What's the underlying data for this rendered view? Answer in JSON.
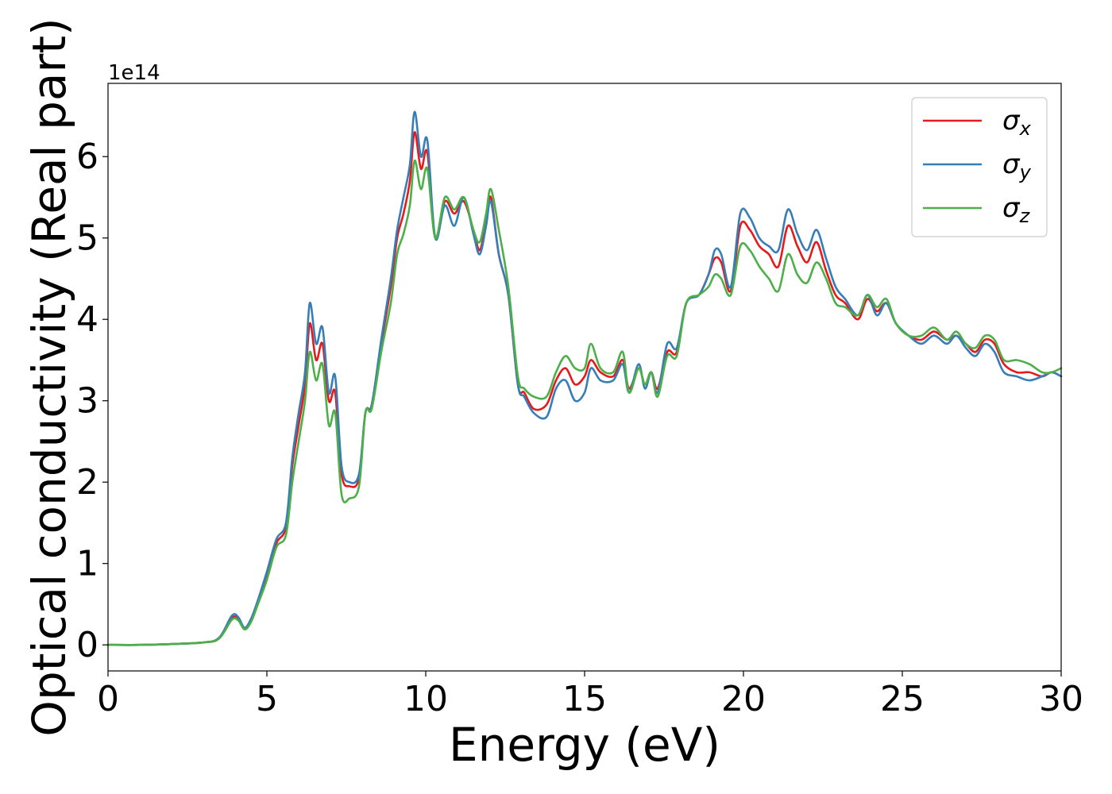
{
  "chart_data": {
    "type": "line",
    "title": "",
    "xlabel": "Energy (eV)",
    "ylabel": "Optical conductivity (Real part)",
    "y_offset_text": "1e14",
    "xlim": [
      0,
      30
    ],
    "ylim": [
      -0.32,
      6.9
    ],
    "x_ticks": [
      0,
      5,
      10,
      15,
      20,
      25,
      30
    ],
    "x_tick_labels": [
      "0",
      "5",
      "10",
      "15",
      "20",
      "25",
      "30"
    ],
    "y_ticks": [
      0,
      1,
      2,
      3,
      4,
      5,
      6
    ],
    "y_tick_labels": [
      "0",
      "1",
      "2",
      "3",
      "4",
      "5",
      "6"
    ],
    "grid": false,
    "legend_position": "top-right",
    "x": [
      0,
      1,
      2,
      3,
      3.5,
      3.9,
      4.1,
      4.3,
      4.5,
      4.7,
      5,
      5.3,
      5.6,
      5.8,
      6,
      6.2,
      6.35,
      6.55,
      6.75,
      6.95,
      7.15,
      7.35,
      7.6,
      7.9,
      8.1,
      8.3,
      8.6,
      8.9,
      9.1,
      9.3,
      9.5,
      9.65,
      9.85,
      10.05,
      10.3,
      10.6,
      10.9,
      11.2,
      11.5,
      11.7,
      11.9,
      12.05,
      12.3,
      12.6,
      12.9,
      13.1,
      13.4,
      13.8,
      14.1,
      14.4,
      14.7,
      15.0,
      15.2,
      15.5,
      15.9,
      16.2,
      16.4,
      16.7,
      16.9,
      17.1,
      17.3,
      17.6,
      17.9,
      18.2,
      18.6,
      18.9,
      19.1,
      19.3,
      19.6,
      19.9,
      20.2,
      20.5,
      20.8,
      21.1,
      21.4,
      21.7,
      22.0,
      22.3,
      22.6,
      22.9,
      23.2,
      23.6,
      23.9,
      24.2,
      24.5,
      24.8,
      25.2,
      25.6,
      26.0,
      26.4,
      26.7,
      27.0,
      27.3,
      27.6,
      27.9,
      28.2,
      28.6,
      29.0,
      29.4,
      29.7,
      30.0
    ],
    "series": [
      {
        "name": "σx",
        "sub": "x",
        "color": "#e41a1c",
        "values": [
          0,
          0,
          0.01,
          0.03,
          0.08,
          0.33,
          0.32,
          0.2,
          0.3,
          0.5,
          0.85,
          1.25,
          1.45,
          2.2,
          2.7,
          3.2,
          3.95,
          3.5,
          3.7,
          3.0,
          3.1,
          2.1,
          1.95,
          2.05,
          2.85,
          2.95,
          3.7,
          4.4,
          5.0,
          5.3,
          5.7,
          6.3,
          5.85,
          6.05,
          5.0,
          5.45,
          5.3,
          5.45,
          5.1,
          4.85,
          5.2,
          5.5,
          4.8,
          4.3,
          3.2,
          3.1,
          2.9,
          2.95,
          3.25,
          3.4,
          3.2,
          3.3,
          3.5,
          3.35,
          3.3,
          3.5,
          3.15,
          3.4,
          3.2,
          3.35,
          3.15,
          3.6,
          3.6,
          4.2,
          4.3,
          4.55,
          4.75,
          4.7,
          4.35,
          5.15,
          5.1,
          4.9,
          4.8,
          4.65,
          5.15,
          4.9,
          4.7,
          4.95,
          4.6,
          4.3,
          4.2,
          4.0,
          4.25,
          4.1,
          4.2,
          3.95,
          3.8,
          3.75,
          3.85,
          3.75,
          3.8,
          3.7,
          3.6,
          3.75,
          3.7,
          3.45,
          3.35,
          3.35,
          3.3,
          3.35,
          3.3
        ]
      },
      {
        "name": "σy",
        "sub": "y",
        "color": "#377eb8",
        "values": [
          0,
          0,
          0.01,
          0.03,
          0.09,
          0.36,
          0.34,
          0.21,
          0.32,
          0.53,
          0.9,
          1.3,
          1.5,
          2.3,
          2.85,
          3.35,
          4.2,
          3.7,
          3.9,
          3.1,
          3.3,
          2.2,
          2.0,
          2.1,
          2.85,
          2.95,
          3.75,
          4.5,
          5.1,
          5.5,
          5.9,
          6.55,
          6.0,
          6.2,
          5.0,
          5.4,
          5.15,
          5.5,
          5.05,
          4.8,
          5.15,
          5.45,
          4.8,
          4.3,
          3.2,
          3.05,
          2.85,
          2.8,
          3.15,
          3.25,
          3.0,
          3.1,
          3.4,
          3.25,
          3.25,
          3.45,
          3.1,
          3.45,
          3.15,
          3.35,
          3.1,
          3.7,
          3.65,
          4.2,
          4.3,
          4.55,
          4.85,
          4.8,
          4.4,
          5.3,
          5.25,
          5.0,
          4.9,
          4.85,
          5.35,
          5.05,
          4.85,
          5.1,
          4.75,
          4.4,
          4.25,
          4.05,
          4.3,
          4.05,
          4.2,
          3.95,
          3.8,
          3.7,
          3.8,
          3.7,
          3.8,
          3.65,
          3.55,
          3.7,
          3.6,
          3.35,
          3.3,
          3.25,
          3.3,
          3.35,
          3.3
        ]
      },
      {
        "name": "σz",
        "sub": "z",
        "color": "#4daf4a",
        "values": [
          0,
          0,
          0.01,
          0.03,
          0.08,
          0.31,
          0.3,
          0.19,
          0.28,
          0.48,
          0.8,
          1.2,
          1.35,
          2.0,
          2.5,
          3.0,
          3.6,
          3.25,
          3.45,
          2.7,
          2.85,
          1.85,
          1.8,
          1.95,
          2.85,
          2.9,
          3.6,
          4.2,
          4.8,
          5.05,
          5.4,
          5.95,
          5.6,
          5.85,
          5.0,
          5.5,
          5.35,
          5.5,
          5.1,
          4.95,
          5.3,
          5.6,
          5.1,
          4.4,
          3.3,
          3.15,
          3.05,
          3.05,
          3.35,
          3.55,
          3.4,
          3.4,
          3.7,
          3.4,
          3.35,
          3.6,
          3.1,
          3.4,
          3.2,
          3.35,
          3.05,
          3.55,
          3.55,
          4.2,
          4.3,
          4.4,
          4.55,
          4.5,
          4.3,
          4.9,
          4.85,
          4.65,
          4.5,
          4.35,
          4.8,
          4.55,
          4.45,
          4.7,
          4.5,
          4.2,
          4.15,
          4.05,
          4.3,
          4.15,
          4.25,
          3.95,
          3.8,
          3.8,
          3.9,
          3.75,
          3.85,
          3.7,
          3.65,
          3.8,
          3.75,
          3.5,
          3.5,
          3.45,
          3.35,
          3.35,
          3.4
        ]
      }
    ]
  }
}
